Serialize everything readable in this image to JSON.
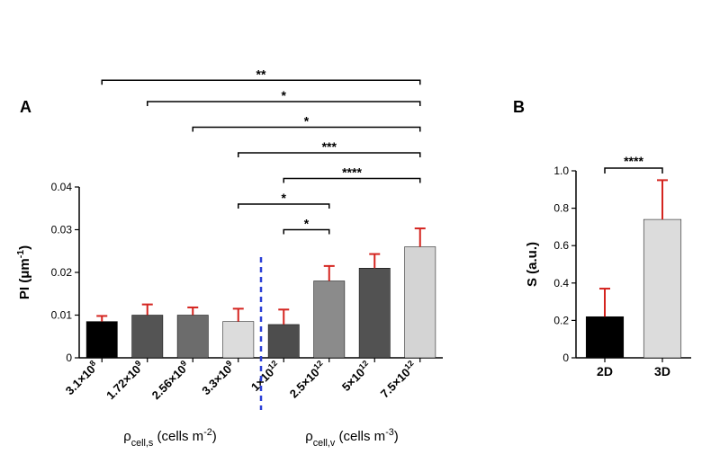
{
  "panelA": {
    "label": "A",
    "type": "bar",
    "ylabel_plain": "PI (",
    "ylabel_unit": "μm",
    "ylabel_sup": "-1",
    "ylabel_close": ")",
    "yticks": [
      0,
      0.01,
      0.02,
      0.03,
      0.04
    ],
    "ytick_labels": [
      "0",
      "0.01",
      "0.02",
      "0.03",
      "0.04"
    ],
    "ylim": [
      0,
      0.04
    ],
    "categories": [
      "3.1×10^8",
      "1.72×10^9",
      "2.56×10^9",
      "3.3×10^9",
      "1×10^12",
      "2.5×10^12",
      "5×10^12",
      "7.5×10^12"
    ],
    "cat_mantissa": [
      "3.1",
      "1.72",
      "2.56",
      "3.3",
      "1",
      "2.5",
      "5",
      "7.5"
    ],
    "cat_exponent": [
      "8",
      "9",
      "9",
      "9",
      "12",
      "12",
      "12",
      "12"
    ],
    "values": [
      0.0085,
      0.01,
      0.01,
      0.0085,
      0.0078,
      0.018,
      0.021,
      0.026
    ],
    "err": [
      0.0013,
      0.0025,
      0.0018,
      0.003,
      0.0035,
      0.0035,
      0.0033,
      0.0043
    ],
    "bar_colors": [
      "#000000",
      "#545454",
      "#6c6c6c",
      "#dcdcdc",
      "#4d4d4d",
      "#8b8b8b",
      "#525252",
      "#d4d4d4"
    ],
    "error_color": "#d4241f",
    "axis_color": "#000000",
    "text_color": "#000000",
    "xgroup1_label_plain": "ρ",
    "xgroup1_label_sub": "cell,s",
    "xgroup1_label_rest": " (cells m",
    "xgroup1_label_sup": "-2",
    "xgroup1_label_close": ")",
    "xgroup2_label_plain": "ρ",
    "xgroup2_label_sub": "cell,v",
    "xgroup2_label_rest": " (cells m",
    "xgroup2_label_sup": "-3",
    "xgroup2_label_close": ")",
    "divider_color": "#2a3fd6",
    "sig_brackets": [
      {
        "from": 0,
        "to": 7,
        "label": "**",
        "y": 0.065
      },
      {
        "from": 1,
        "to": 7,
        "label": "*",
        "y": 0.06
      },
      {
        "from": 2,
        "to": 7,
        "label": "*",
        "y": 0.054
      },
      {
        "from": 3,
        "to": 7,
        "label": "***",
        "y": 0.048
      },
      {
        "from": 4,
        "to": 7,
        "label": "****",
        "y": 0.042
      },
      {
        "from": 3,
        "to": 5,
        "label": "*",
        "y": 0.036
      },
      {
        "from": 4,
        "to": 5,
        "label": "*",
        "y": 0.03
      }
    ],
    "tick_fontsize": 12,
    "xtick_fontsize": 13,
    "label_fontsize": 15
  },
  "panelB": {
    "label": "B",
    "type": "bar",
    "ylabel": "S (a.u.)",
    "yticks": [
      0,
      0.2,
      0.4,
      0.6,
      0.8,
      1.0
    ],
    "ytick_labels": [
      "0",
      "0.2",
      "0.4",
      "0.6",
      "0.8",
      "1.0"
    ],
    "ylim": [
      0,
      1.0
    ],
    "categories": [
      "2D",
      "3D"
    ],
    "values": [
      0.22,
      0.74
    ],
    "err": [
      0.15,
      0.21
    ],
    "bar_colors": [
      "#000000",
      "#dcdcdc"
    ],
    "error_color": "#d4241f",
    "axis_color": "#000000",
    "text_color": "#000000",
    "sig": {
      "from": 0,
      "to": 1,
      "label": "****",
      "y": 1.0
    },
    "tick_fontsize": 12,
    "xtick_fontsize": 14,
    "label_fontsize": 15
  },
  "layout": {
    "panel_label_fontsize": 18,
    "panel_label_weight": "bold",
    "background": "#ffffff"
  }
}
